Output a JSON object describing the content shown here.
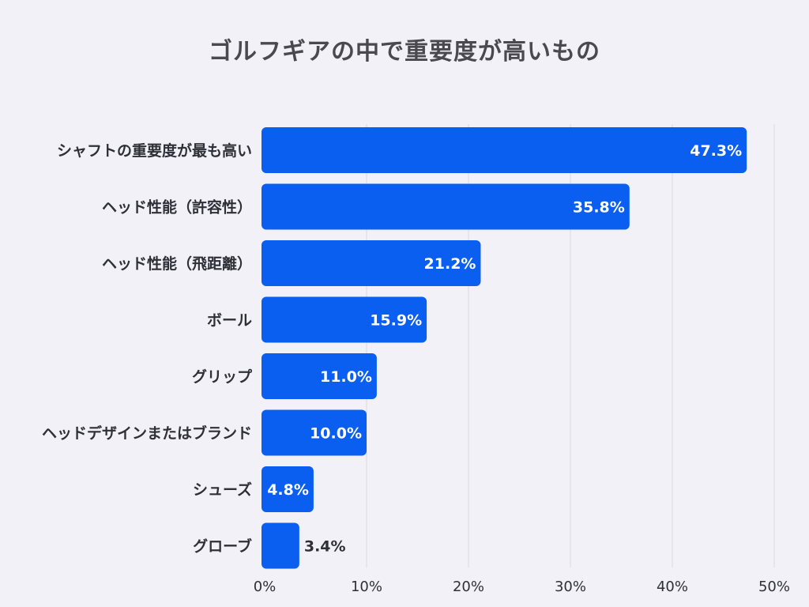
{
  "chart_data": {
    "type": "bar",
    "orientation": "horizontal",
    "title": "ゴルフギアの中で重要度が高いもの",
    "categories": [
      "シャフトの重要度が最も高い",
      "ヘッド性能（許容性）",
      "ヘッド性能（飛距離）",
      "ボール",
      "グリップ",
      "ヘッドデザインまたはブランド",
      "シューズ",
      "グローブ"
    ],
    "values": [
      47.3,
      35.8,
      21.2,
      15.9,
      11.0,
      10.0,
      4.8,
      3.4
    ],
    "value_labels": [
      "47.3%",
      "35.8%",
      "21.2%",
      "15.9%",
      "11.0%",
      "10.0%",
      "4.8%",
      "3.4%"
    ],
    "xticks": [
      "0%",
      "10%",
      "20%",
      "30%",
      "40%",
      "50%"
    ],
    "xtick_values": [
      0,
      10,
      20,
      30,
      40,
      50
    ],
    "xlim": [
      0,
      50
    ],
    "xlabel": "",
    "ylabel": "",
    "grid": true,
    "bar_color": "#0b5ff0",
    "background": "#f2f1f7"
  }
}
